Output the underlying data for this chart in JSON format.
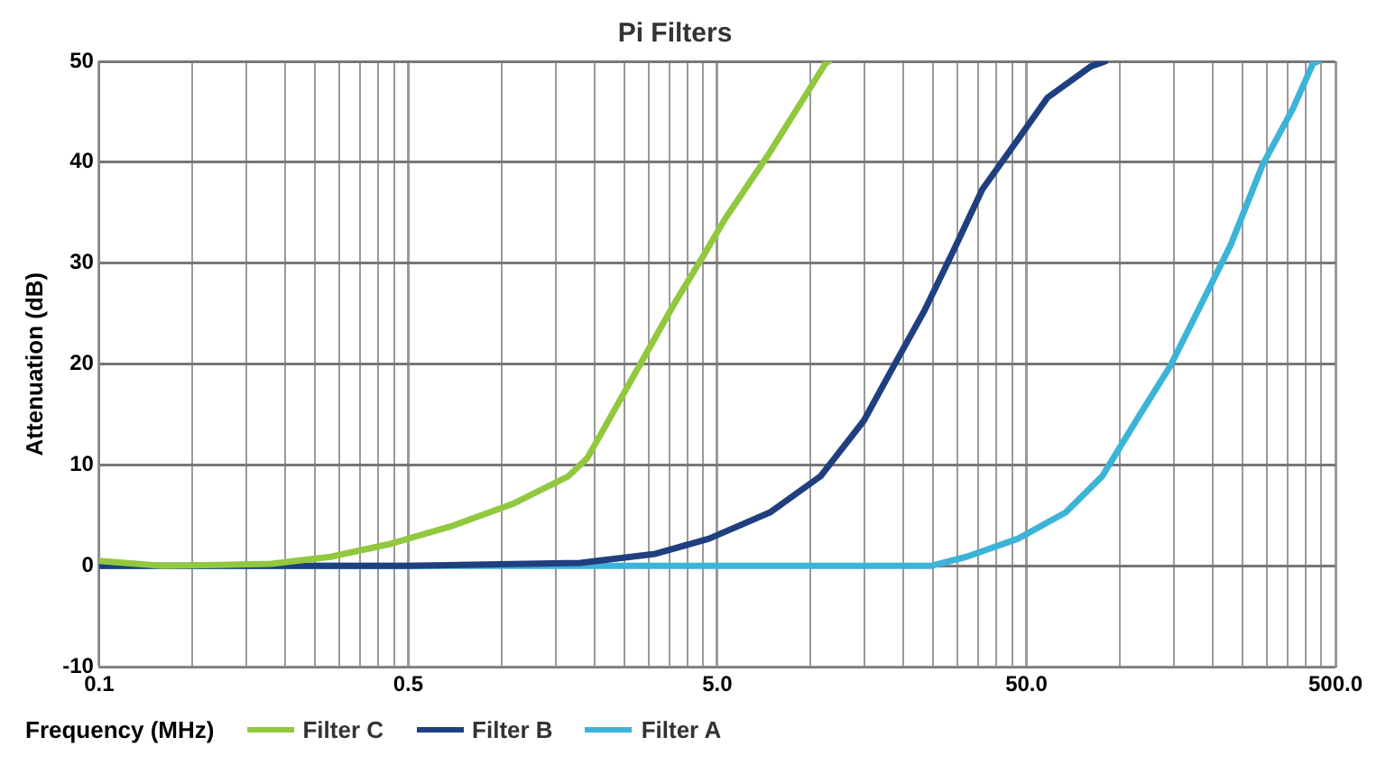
{
  "chart_data": {
    "type": "line",
    "title": "Pi Filters",
    "xlabel": "Frequency (MHz)",
    "ylabel": "Attenuation (dB)",
    "log": "x",
    "grid": true,
    "legend": "bottom",
    "marker": "none",
    "line_style": "solid",
    "xlim": [
      0.05,
      500
    ],
    "xticks": [
      {
        "value": 0.05,
        "label": "0.1"
      },
      {
        "value": 0.1,
        "label": null
      },
      {
        "value": 0.15,
        "label": null
      },
      {
        "value": 0.2,
        "label": null
      },
      {
        "value": 0.25,
        "label": null
      },
      {
        "value": 0.3,
        "label": null
      },
      {
        "value": 0.35,
        "label": null
      },
      {
        "value": 0.4,
        "label": null
      },
      {
        "value": 0.45,
        "label": null
      },
      {
        "value": 0.5,
        "label": "0.5"
      },
      {
        "value": 1,
        "label": null
      },
      {
        "value": 1.5,
        "label": null
      },
      {
        "value": 2,
        "label": null
      },
      {
        "value": 2.5,
        "label": null
      },
      {
        "value": 3,
        "label": null
      },
      {
        "value": 3.5,
        "label": null
      },
      {
        "value": 4,
        "label": null
      },
      {
        "value": 4.5,
        "label": null
      },
      {
        "value": 5,
        "label": "5.0"
      },
      {
        "value": 10,
        "label": null
      },
      {
        "value": 15,
        "label": null
      },
      {
        "value": 20,
        "label": null
      },
      {
        "value": 25,
        "label": null
      },
      {
        "value": 30,
        "label": null
      },
      {
        "value": 35,
        "label": null
      },
      {
        "value": 40,
        "label": null
      },
      {
        "value": 45,
        "label": null
      },
      {
        "value": 50,
        "label": "50.0"
      },
      {
        "value": 100,
        "label": null
      },
      {
        "value": 150,
        "label": null
      },
      {
        "value": 200,
        "label": null
      },
      {
        "value": 250,
        "label": null
      },
      {
        "value": 300,
        "label": null
      },
      {
        "value": 350,
        "label": null
      },
      {
        "value": 400,
        "label": null
      },
      {
        "value": 450,
        "label": null
      },
      {
        "value": 500,
        "label": "500.0"
      }
    ],
    "ylim": [
      -10,
      50
    ],
    "yticks": [
      -10,
      0,
      10,
      20,
      30,
      40,
      50
    ],
    "series": [
      {
        "name": "Filter C",
        "color": "#92c83e",
        "x": [
          0.05,
          0.08,
          0.18,
          0.28,
          0.44,
          0.7,
          1.1,
          1.65,
          1.9,
          2.7,
          3.6,
          4.5,
          5.3,
          7.4,
          11.2,
          11.5
        ],
        "values": [
          0.5,
          0,
          0.2,
          0.9,
          2.2,
          4,
          6.2,
          8.9,
          10.7,
          19,
          25.8,
          30.7,
          34.4,
          41,
          49.8,
          50
        ]
      },
      {
        "name": "Filter B",
        "color": "#1f3f7f",
        "x": [
          0.05,
          0.5,
          1.8,
          3.15,
          4.7,
          7.4,
          10.8,
          14.9,
          18.6,
          23.4,
          29.1,
          36,
          46.8,
          58.5,
          80.8,
          90
        ],
        "values": [
          0,
          0,
          0.3,
          1.2,
          2.7,
          5.3,
          8.9,
          14.4,
          19.8,
          25.3,
          31.3,
          37.3,
          42.2,
          46.4,
          49.5,
          50
        ]
      },
      {
        "name": "Filter A",
        "color": "#3cb4d8",
        "x": [
          0.05,
          1,
          24.5,
          32,
          47,
          67,
          88,
          116,
          146,
          183,
          229,
          291,
          364,
          423,
          440
        ],
        "values": [
          0,
          0,
          0,
          0.9,
          2.7,
          5.3,
          8.9,
          14.9,
          19.8,
          25.8,
          31.8,
          39.8,
          45.3,
          49.8,
          50
        ]
      }
    ]
  }
}
